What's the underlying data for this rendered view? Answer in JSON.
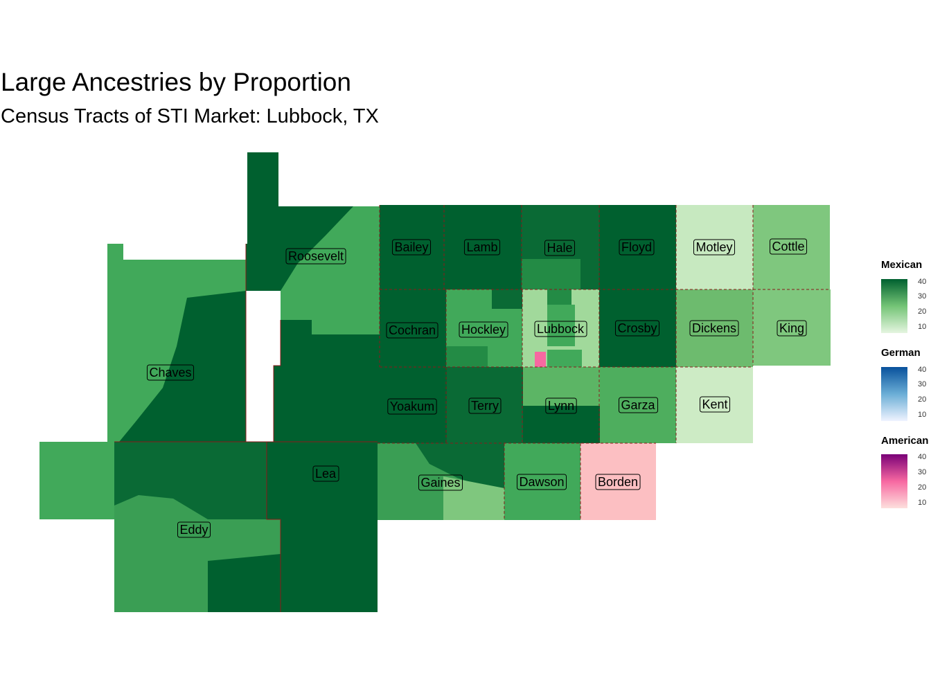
{
  "title": "Large Ancestries by Proportion",
  "subtitle": "Census Tracts of STI Market: Lubbock, TX",
  "colors": {
    "mexican_low": "#e5f5e0",
    "mexican_high": "#00602f",
    "german_low": "#eff3ff",
    "german_high": "#08519c",
    "american_low": "#fde0dd",
    "american_high": "#7a0177",
    "border": "#8b1a1a"
  },
  "counties": [
    {
      "name": "Roosevelt"
    },
    {
      "name": "Chaves"
    },
    {
      "name": "Eddy"
    },
    {
      "name": "Lea"
    },
    {
      "name": "Bailey"
    },
    {
      "name": "Lamb"
    },
    {
      "name": "Hale"
    },
    {
      "name": "Floyd"
    },
    {
      "name": "Motley"
    },
    {
      "name": "Cottle"
    },
    {
      "name": "Cochran"
    },
    {
      "name": "Hockley"
    },
    {
      "name": "Lubbock"
    },
    {
      "name": "Crosby"
    },
    {
      "name": "Dickens"
    },
    {
      "name": "King"
    },
    {
      "name": "Yoakum"
    },
    {
      "name": "Terry"
    },
    {
      "name": "Lynn"
    },
    {
      "name": "Garza"
    },
    {
      "name": "Kent"
    },
    {
      "name": "Gaines"
    },
    {
      "name": "Dawson"
    },
    {
      "name": "Borden"
    }
  ],
  "legends": [
    {
      "title": "Mexican",
      "ticks": [
        "40",
        "30",
        "20",
        "10"
      ]
    },
    {
      "title": "German",
      "ticks": [
        "40",
        "30",
        "20",
        "10"
      ]
    },
    {
      "title": "American",
      "ticks": [
        "40",
        "30",
        "20",
        "10"
      ]
    }
  ]
}
